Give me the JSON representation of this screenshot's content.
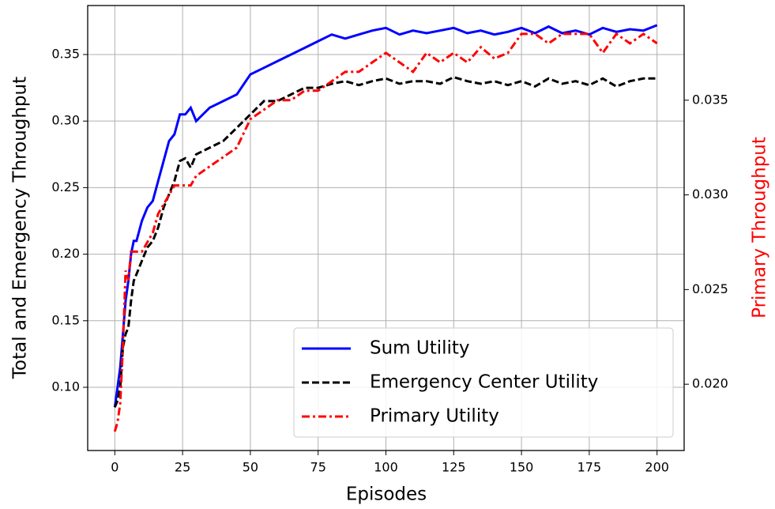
{
  "chart_data": {
    "type": "line",
    "xlabel": "Episodes",
    "ylabel": "Total and Emergency Throughput",
    "y2label": "Primary Throughput",
    "y2label_color": "#ff0000",
    "x": [
      0,
      1,
      2,
      3,
      4,
      5,
      6,
      7,
      8,
      10,
      12,
      14,
      16,
      18,
      20,
      22,
      24,
      26,
      28,
      30,
      35,
      40,
      45,
      50,
      55,
      60,
      65,
      70,
      75,
      80,
      85,
      90,
      95,
      100,
      105,
      110,
      115,
      120,
      125,
      130,
      135,
      140,
      145,
      150,
      155,
      160,
      165,
      170,
      175,
      180,
      185,
      190,
      195,
      200
    ],
    "series": [
      {
        "name": "Sum Utility",
        "color": "#0000ff",
        "style": "solid",
        "axis": "y",
        "values": [
          0.085,
          0.1,
          0.115,
          0.14,
          0.165,
          0.18,
          0.2,
          0.21,
          0.21,
          0.225,
          0.235,
          0.24,
          0.255,
          0.27,
          0.285,
          0.29,
          0.305,
          0.305,
          0.31,
          0.3,
          0.31,
          0.315,
          0.32,
          0.335,
          0.34,
          0.345,
          0.35,
          0.355,
          0.36,
          0.365,
          0.362,
          0.365,
          0.368,
          0.37,
          0.365,
          0.368,
          0.366,
          0.368,
          0.37,
          0.366,
          0.368,
          0.365,
          0.367,
          0.37,
          0.366,
          0.371,
          0.366,
          0.368,
          0.365,
          0.37,
          0.367,
          0.369,
          0.368,
          0.372
        ]
      },
      {
        "name": "Emergency Center Utility",
        "color": "#000000",
        "style": "dashed",
        "axis": "y",
        "values": [
          0.085,
          0.09,
          0.1,
          0.13,
          0.14,
          0.145,
          0.165,
          0.18,
          0.185,
          0.195,
          0.205,
          0.21,
          0.22,
          0.235,
          0.245,
          0.255,
          0.27,
          0.272,
          0.265,
          0.275,
          0.28,
          0.285,
          0.295,
          0.305,
          0.315,
          0.315,
          0.32,
          0.325,
          0.325,
          0.328,
          0.33,
          0.327,
          0.33,
          0.332,
          0.328,
          0.33,
          0.33,
          0.328,
          0.333,
          0.33,
          0.328,
          0.33,
          0.327,
          0.33,
          0.326,
          0.332,
          0.328,
          0.33,
          0.327,
          0.332,
          0.326,
          0.33,
          0.332,
          0.332
        ]
      },
      {
        "name": "Primary Utility",
        "color": "#ff0000",
        "style": "dashdot",
        "axis": "y2",
        "values": [
          0.0175,
          0.018,
          0.019,
          0.022,
          0.026,
          0.0255,
          0.027,
          0.027,
          0.027,
          0.027,
          0.0275,
          0.028,
          0.029,
          0.0295,
          0.03,
          0.0305,
          0.0305,
          0.0305,
          0.0305,
          0.031,
          0.0315,
          0.032,
          0.0325,
          0.034,
          0.0345,
          0.035,
          0.035,
          0.0355,
          0.0355,
          0.036,
          0.0365,
          0.0365,
          0.037,
          0.0375,
          0.037,
          0.0365,
          0.0375,
          0.037,
          0.0375,
          0.037,
          0.0378,
          0.0372,
          0.0375,
          0.0385,
          0.0385,
          0.038,
          0.0385,
          0.0385,
          0.0385,
          0.0375,
          0.0385,
          0.038,
          0.0385,
          0.038
        ]
      }
    ],
    "xlim": [
      -10,
      210
    ],
    "xticks": [
      0,
      25,
      50,
      75,
      100,
      125,
      150,
      175,
      200
    ],
    "ylim": [
      0.0525,
      0.3868
    ],
    "yticks": [
      {
        "value": 0.1,
        "label": "0.10"
      },
      0.15,
      {
        "value": 0.2,
        "label": "0.20"
      },
      0.25,
      {
        "value": 0.3,
        "label": "0.30"
      },
      0.35
    ],
    "y2lim": [
      0.0165,
      0.04
    ],
    "y2ticks": [
      {
        "value": 0.02,
        "label": "0.020"
      },
      0.025,
      {
        "value": 0.03,
        "label": "0.030"
      },
      0.035
    ],
    "grid": true,
    "legend": "lower right"
  }
}
